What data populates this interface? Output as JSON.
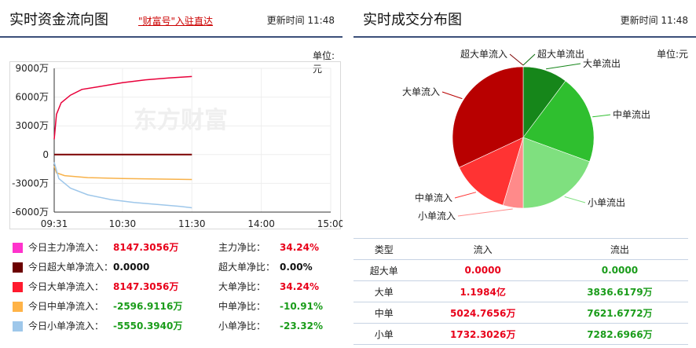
{
  "left": {
    "title": "实时资金流向图",
    "promo": "\"财富号\"入驻直达",
    "update": "更新时间 11:48",
    "unit": "单位:元",
    "watermark": "东方财富"
  },
  "right": {
    "title": "实时成交分布图",
    "update": "更新时间 11:48",
    "unit": "单位:元"
  },
  "chart_data": [
    {
      "type": "line",
      "x_ticks": [
        "09:31",
        "10:30",
        "11:30",
        "14:00",
        "15:00"
      ],
      "y_ticks": [
        "9000万",
        "6000万",
        "3000万",
        "0",
        "-3000万",
        "-6000万"
      ],
      "ylim": [
        -6000,
        9000
      ],
      "series": [
        {
          "color": "#e8003a",
          "x": [
            "09:31",
            "09:33",
            "09:37",
            "09:45",
            "09:55",
            "10:10",
            "10:30",
            "10:50",
            "11:10",
            "11:30"
          ],
          "y": [
            1600,
            4200,
            5400,
            6200,
            6800,
            7100,
            7500,
            7800,
            8000,
            8147.3056
          ]
        },
        {
          "color": "#7b0000",
          "x": [
            "09:31",
            "11:30"
          ],
          "y": [
            0,
            0
          ]
        },
        {
          "color": "#f8b24a",
          "x": [
            "09:31",
            "09:33",
            "09:40",
            "10:00",
            "10:30",
            "11:00",
            "11:30"
          ],
          "y": [
            -1200,
            -1900,
            -2200,
            -2400,
            -2500,
            -2550,
            -2596.9116
          ]
        },
        {
          "color": "#9ec7ea",
          "x": [
            "09:31",
            "09:35",
            "09:45",
            "10:00",
            "10:20",
            "10:40",
            "11:00",
            "11:20",
            "11:30"
          ],
          "y": [
            -800,
            -2500,
            -3500,
            -4200,
            -4700,
            -5000,
            -5200,
            -5400,
            -5550.394
          ]
        }
      ]
    },
    {
      "type": "pie",
      "labels": [
        "超大单流入",
        "超大单流出",
        "大单流出",
        "中单流出",
        "小单流出",
        "小单流入",
        "中单流入",
        "大单流入"
      ],
      "values": [
        0.0,
        0.0,
        3836.6179,
        7621.6772,
        7282.6966,
        1732.3026,
        5024.7656,
        11984
      ],
      "colors": [
        "#7b0000",
        "#0a6a0a",
        "#16861a",
        "#2fbf2f",
        "#7fe07f",
        "#ff8a8a",
        "#ff3333",
        "#b80000"
      ]
    }
  ],
  "summary": [
    {
      "color": "#ff33cc",
      "label": "今日主力净流入：",
      "value": "8147.3056万",
      "vclass": "red",
      "ratio_label": "主力净比：",
      "ratio": "34.24%",
      "rclass": "red"
    },
    {
      "color": "#6b0000",
      "label": "今日超大单净流入：",
      "value": "0.0000",
      "vclass": "black",
      "ratio_label": "超大单净比：",
      "ratio": "0.00%",
      "rclass": "black"
    },
    {
      "color": "#ff1a2e",
      "label": "今日大单净流入：",
      "value": "8147.3056万",
      "vclass": "red",
      "ratio_label": "大单净比：",
      "ratio": "34.24%",
      "rclass": "red"
    },
    {
      "color": "#ffb347",
      "label": "今日中单净流入：",
      "value": "-2596.9116万",
      "vclass": "green",
      "ratio_label": "中单净比：",
      "ratio": "-10.91%",
      "rclass": "green"
    },
    {
      "color": "#9ec7ea",
      "label": "今日小单净流入：",
      "value": "-5550.3940万",
      "vclass": "green",
      "ratio_label": "小单净比：",
      "ratio": "-23.32%",
      "rclass": "green"
    }
  ],
  "flow_table": {
    "headers": [
      "类型",
      "流入",
      "流出"
    ],
    "rows": [
      {
        "type": "超大单",
        "in": "0.0000",
        "out": "0.0000"
      },
      {
        "type": "大单",
        "in": "1.1984亿",
        "out": "3836.6179万"
      },
      {
        "type": "中单",
        "in": "5024.7656万",
        "out": "7621.6772万"
      },
      {
        "type": "小单",
        "in": "1732.3026万",
        "out": "7282.6966万"
      }
    ]
  }
}
